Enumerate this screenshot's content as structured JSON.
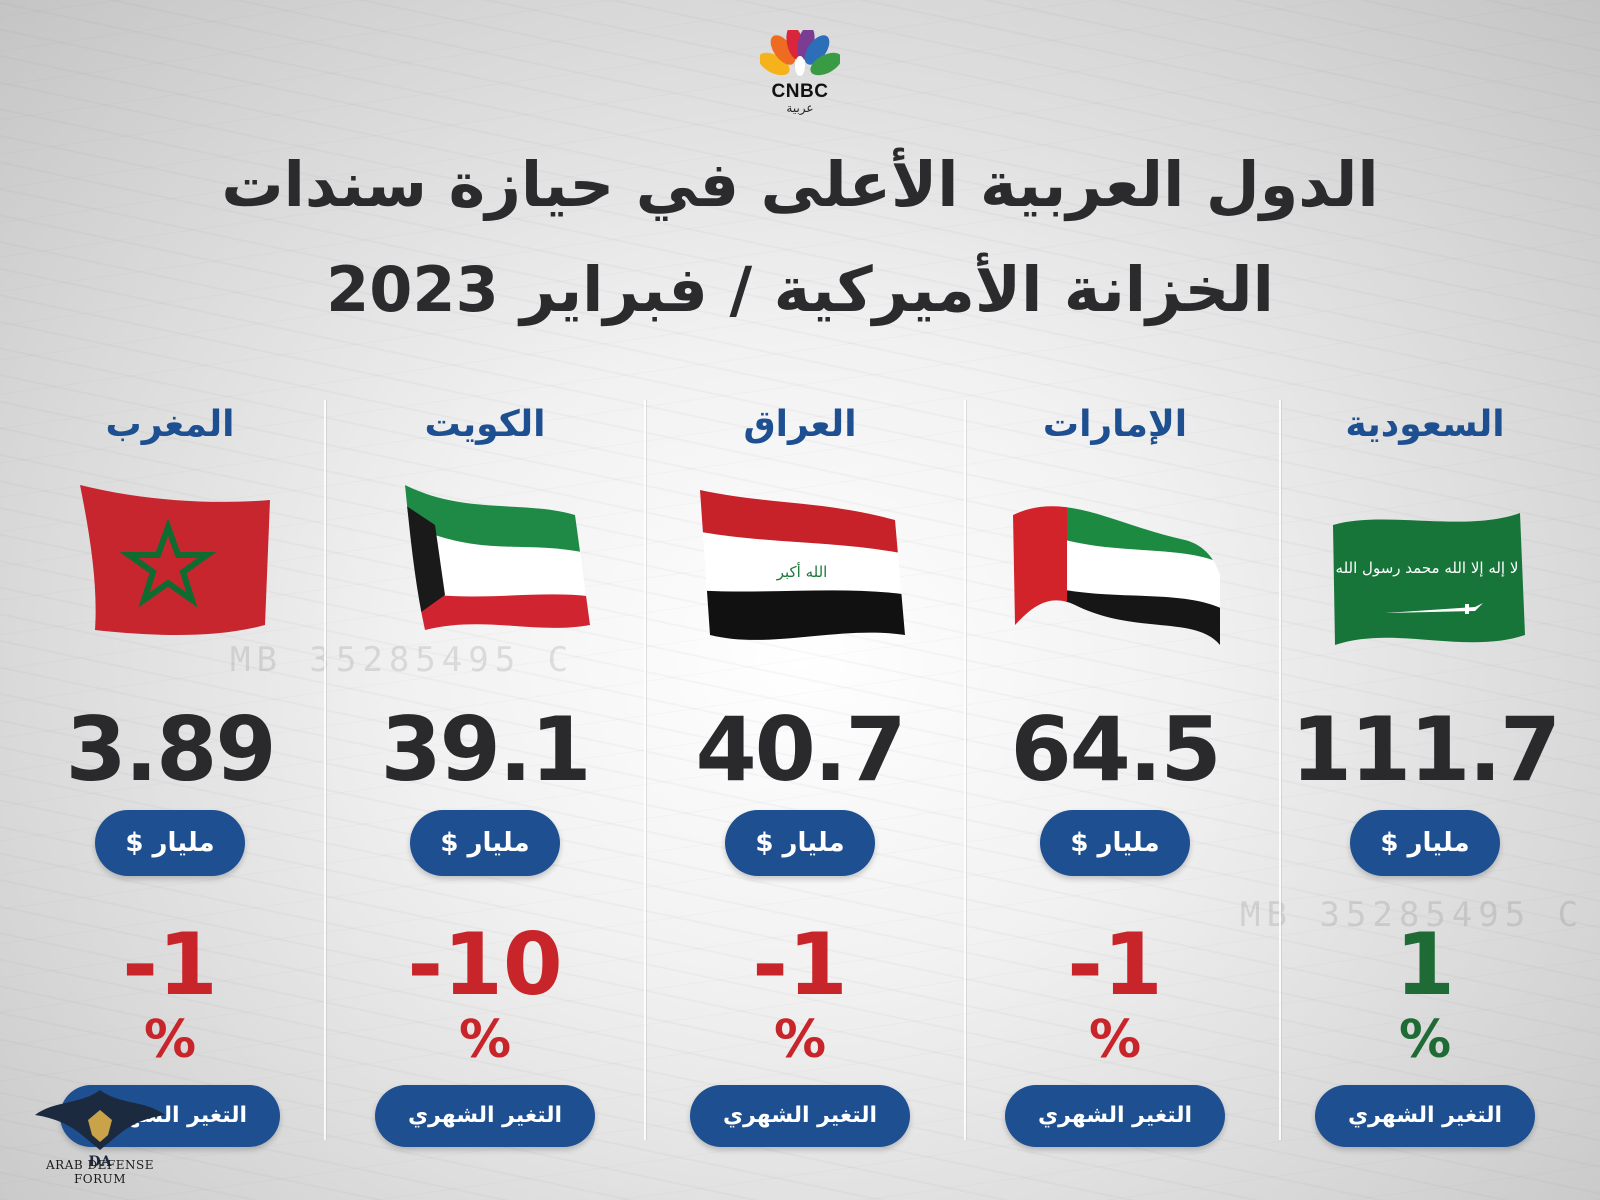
{
  "logo": {
    "text": "CNBC",
    "sub": "عربية"
  },
  "title": {
    "line1": "الدول العربية الأعلى في حيازة سندات",
    "line2": "الخزانة الأميركية / فبراير 2023"
  },
  "columns": [
    {
      "country": "السعودية",
      "flag": "saudi-flag",
      "value": "111.7",
      "unit": "مليار $",
      "change": "1",
      "change_sign": "positive",
      "percent": "%",
      "change_label": "التغير الشهري"
    },
    {
      "country": "الإمارات",
      "flag": "uae-flag",
      "value": "64.5",
      "unit": "مليار $",
      "change": "-1",
      "change_sign": "negative",
      "percent": "%",
      "change_label": "التغير الشهري"
    },
    {
      "country": "العراق",
      "flag": "iraq-flag",
      "value": "40.7",
      "unit": "مليار $",
      "change": "-1",
      "change_sign": "negative",
      "percent": "%",
      "change_label": "التغير الشهري"
    },
    {
      "country": "الكويت",
      "flag": "kuwait-flag",
      "value": "39.1",
      "unit": "مليار $",
      "change": "-10",
      "change_sign": "negative",
      "percent": "%",
      "change_label": "التغير الشهري"
    },
    {
      "country": "المغرب",
      "flag": "morocco-flag",
      "value": "3.89",
      "unit": "مليار $",
      "change": "-1",
      "change_sign": "negative",
      "percent": "%",
      "change_label": "التغير الشهري"
    }
  ],
  "flag_text": {
    "saudi": "لا إله إلا الله محمد رسول الله",
    "iraq": "الله أكبر"
  },
  "watermark": {
    "text": "ARAB DEFENSE FORUM",
    "monogram": "DA"
  },
  "colors": {
    "blue": "#1d4f91",
    "negative": "#c8252a",
    "positive": "#1f6b35",
    "title": "#2b2b2e"
  }
}
